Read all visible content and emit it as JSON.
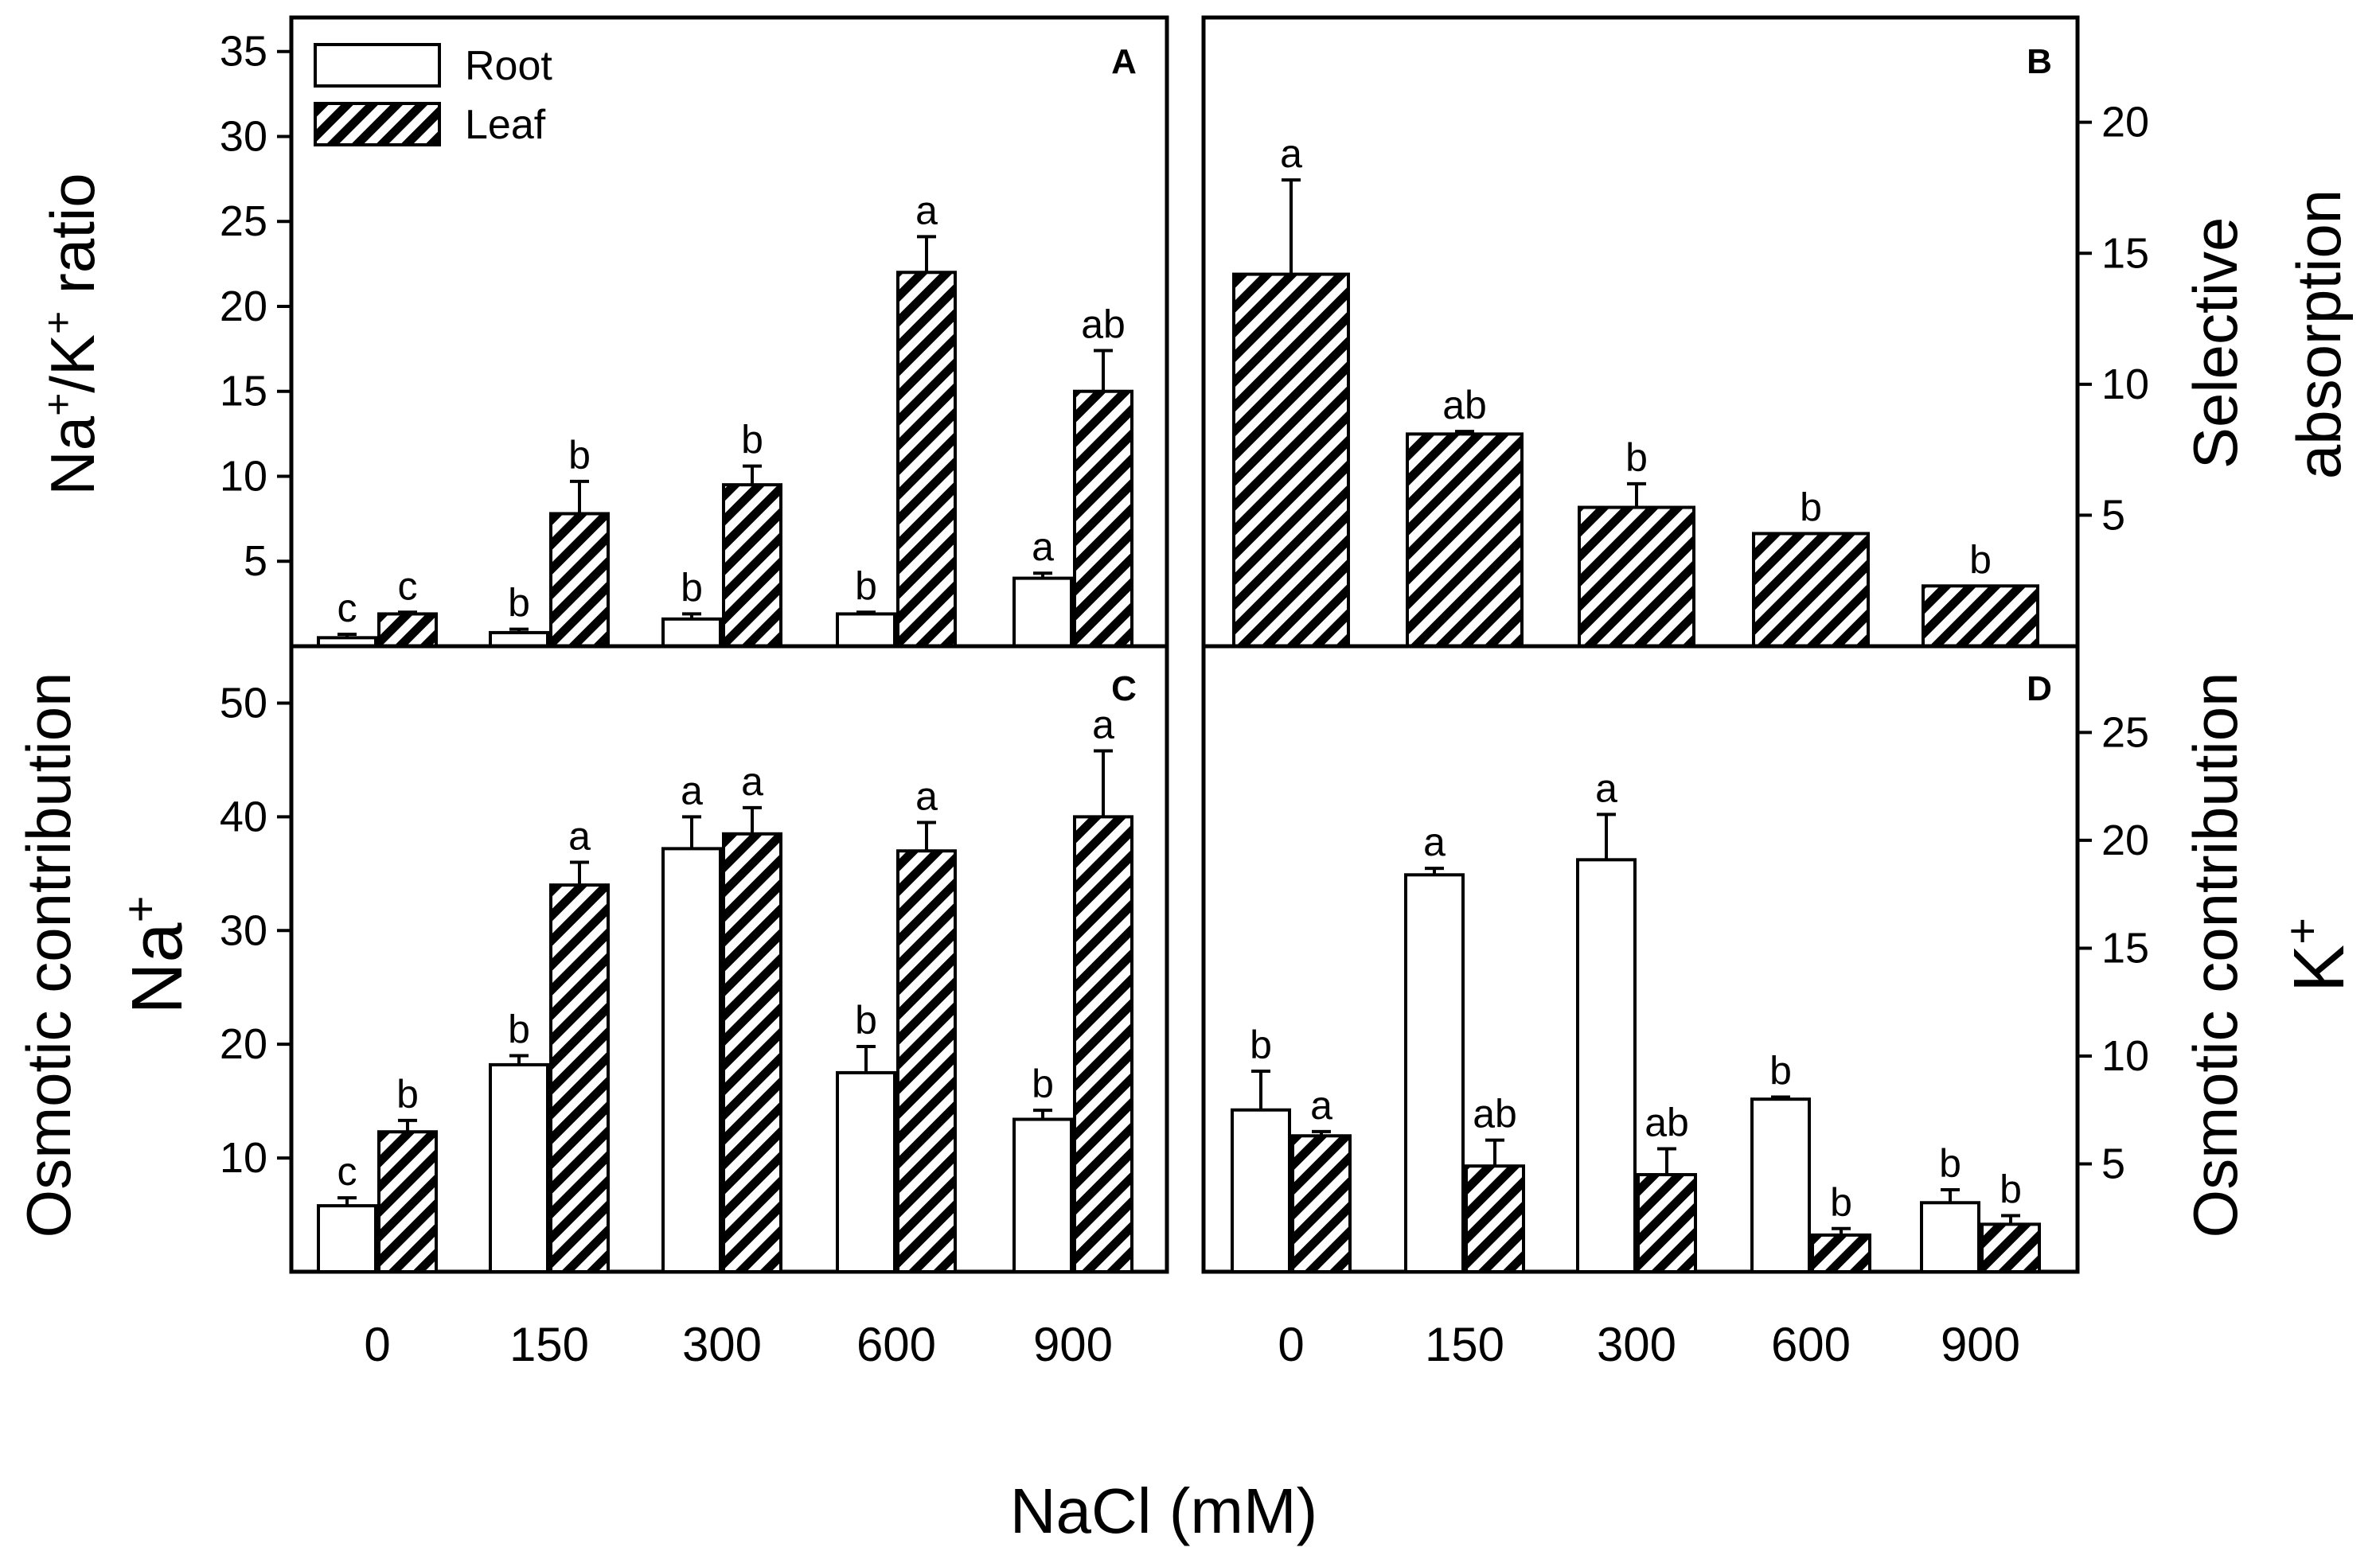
{
  "figure": {
    "xlabel": "NaCl (mM)",
    "categories": [
      "0",
      "150",
      "300",
      "600",
      "900"
    ],
    "legend": [
      {
        "key": "root",
        "label": "Root",
        "fill": "open"
      },
      {
        "key": "leaf",
        "label": "Leaf",
        "fill": "hatched"
      }
    ],
    "colors": {
      "ink": "#000000",
      "open_fill": "#ffffff"
    }
  },
  "chart_data": [
    {
      "panel": "A",
      "type": "bar",
      "ylabel_parts": [
        "Na",
        "+",
        "/K",
        "+",
        " ratio"
      ],
      "yaxis_side": "left",
      "ylim": [
        0,
        37
      ],
      "yticks": [
        5,
        10,
        15,
        20,
        25,
        30,
        35
      ],
      "categories": [
        "0",
        "150",
        "300",
        "600",
        "900"
      ],
      "series": [
        {
          "name": "Root",
          "values": [
            0.5,
            0.8,
            1.6,
            1.9,
            4.0
          ],
          "errors": [
            0.2,
            0.2,
            0.3,
            0.1,
            0.3
          ],
          "letters": [
            "c",
            "b",
            "b",
            "b",
            "a"
          ]
        },
        {
          "name": "Leaf",
          "values": [
            1.9,
            7.8,
            9.5,
            22.0,
            15.0
          ],
          "errors": [
            0.1,
            1.9,
            1.1,
            2.1,
            2.4
          ],
          "letters": [
            "c",
            "b",
            "b",
            "a",
            "ab"
          ]
        }
      ]
    },
    {
      "panel": "B",
      "type": "bar",
      "ylabel_lines": [
        "Selective",
        "absorption"
      ],
      "yaxis_side": "right",
      "ylim": [
        0,
        24
      ],
      "yticks": [
        5,
        10,
        15,
        20
      ],
      "categories": [
        "0",
        "150",
        "300",
        "600",
        "900"
      ],
      "series": [
        {
          "name": "Leaf",
          "values": [
            14.2,
            8.1,
            5.3,
            4.3,
            2.3
          ],
          "errors": [
            3.6,
            0.1,
            0.9,
            0.0,
            0.0
          ],
          "letters": [
            "a",
            "ab",
            "b",
            "b",
            "b"
          ]
        }
      ]
    },
    {
      "panel": "C",
      "type": "bar",
      "ylabel_lines": [
        "Osmotic contribution"
      ],
      "ylabel_ion": [
        "Na",
        "+"
      ],
      "yaxis_side": "left",
      "ylim": [
        0,
        55
      ],
      "yticks": [
        10,
        20,
        30,
        40,
        50
      ],
      "categories": [
        "0",
        "150",
        "300",
        "600",
        "900"
      ],
      "series": [
        {
          "name": "Root",
          "values": [
            5.8,
            18.2,
            37.2,
            17.5,
            13.4
          ],
          "errors": [
            0.7,
            0.8,
            2.8,
            2.3,
            0.8
          ],
          "letters": [
            "c",
            "b",
            "a",
            "b",
            "b"
          ]
        },
        {
          "name": "Leaf",
          "values": [
            12.3,
            34.0,
            38.5,
            37.0,
            40.0
          ],
          "errors": [
            1.0,
            2.0,
            2.3,
            2.5,
            5.8
          ],
          "letters": [
            "b",
            "a",
            "a",
            "a",
            "a"
          ]
        }
      ]
    },
    {
      "panel": "D",
      "type": "bar",
      "ylabel_lines": [
        "Osmotic contribution"
      ],
      "ylabel_ion": [
        "K",
        "+"
      ],
      "yaxis_side": "right",
      "ylim": [
        0,
        29
      ],
      "yticks": [
        5,
        10,
        15,
        20,
        25
      ],
      "categories": [
        "0",
        "150",
        "300",
        "600",
        "900"
      ],
      "series": [
        {
          "name": "Root",
          "values": [
            7.5,
            18.4,
            19.1,
            8.0,
            3.2
          ],
          "errors": [
            1.8,
            0.3,
            2.1,
            0.1,
            0.6
          ],
          "letters": [
            "b",
            "a",
            "a",
            "b",
            "b"
          ]
        },
        {
          "name": "Leaf",
          "values": [
            6.3,
            4.9,
            4.5,
            1.7,
            2.2
          ],
          "errors": [
            0.2,
            1.2,
            1.2,
            0.3,
            0.4
          ],
          "letters": [
            "a",
            "ab",
            "ab",
            "b",
            "b"
          ]
        }
      ]
    }
  ]
}
